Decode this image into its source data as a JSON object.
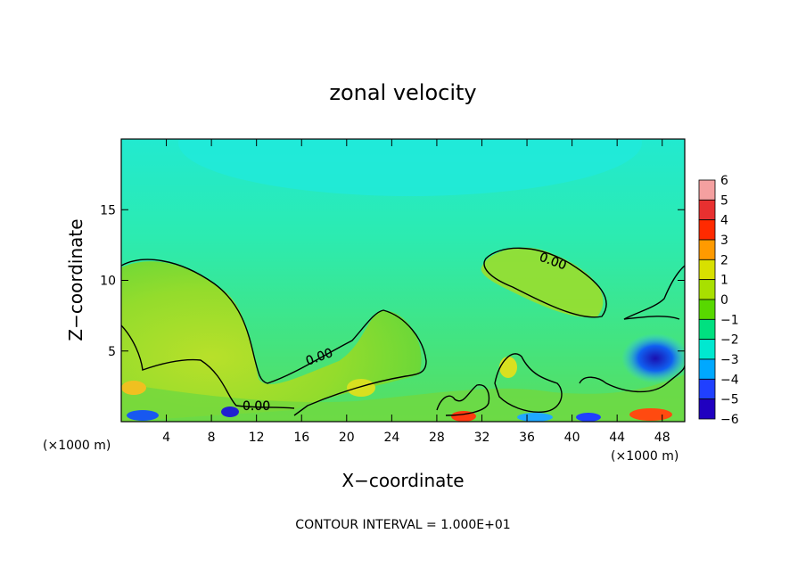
{
  "chart_data": {
    "type": "heatmap",
    "title": "zonal velocity",
    "xlabel": "X−coordinate",
    "ylabel": "Z−coordinate",
    "x_unit_left": "(×1000 m)",
    "x_unit_right": "(×1000 m)",
    "xlim": [
      0,
      50
    ],
    "ylim": [
      0,
      20
    ],
    "x_ticks": [
      4,
      8,
      12,
      16,
      20,
      24,
      28,
      32,
      36,
      40,
      44,
      48
    ],
    "y_ticks": [
      5,
      10,
      15
    ],
    "contour_label": "0.00",
    "footer": "CONTOUR INTERVAL = 1.000E+01",
    "colorbar": {
      "levels": [
        6,
        5,
        4,
        3,
        2,
        1,
        0,
        -1,
        -2,
        -3,
        -4,
        -5,
        -6
      ],
      "labels": [
        "6",
        "5",
        "4",
        "3",
        "2",
        "1",
        "0",
        "−1",
        "−2",
        "−3",
        "−4",
        "−5",
        "−6"
      ],
      "colors": [
        "#f4a0a0",
        "#e83030",
        "#ff2a00",
        "#ff9a00",
        "#d8e000",
        "#a8e000",
        "#58d800",
        "#00e080",
        "#00e8d0",
        "#00a8ff",
        "#2040ff",
        "#2000c0",
        "#8000c0"
      ]
    },
    "field_color_background": "#30e89a",
    "field_color_positive": "#a8e030",
    "field_color_upper": "#28ecc8"
  }
}
